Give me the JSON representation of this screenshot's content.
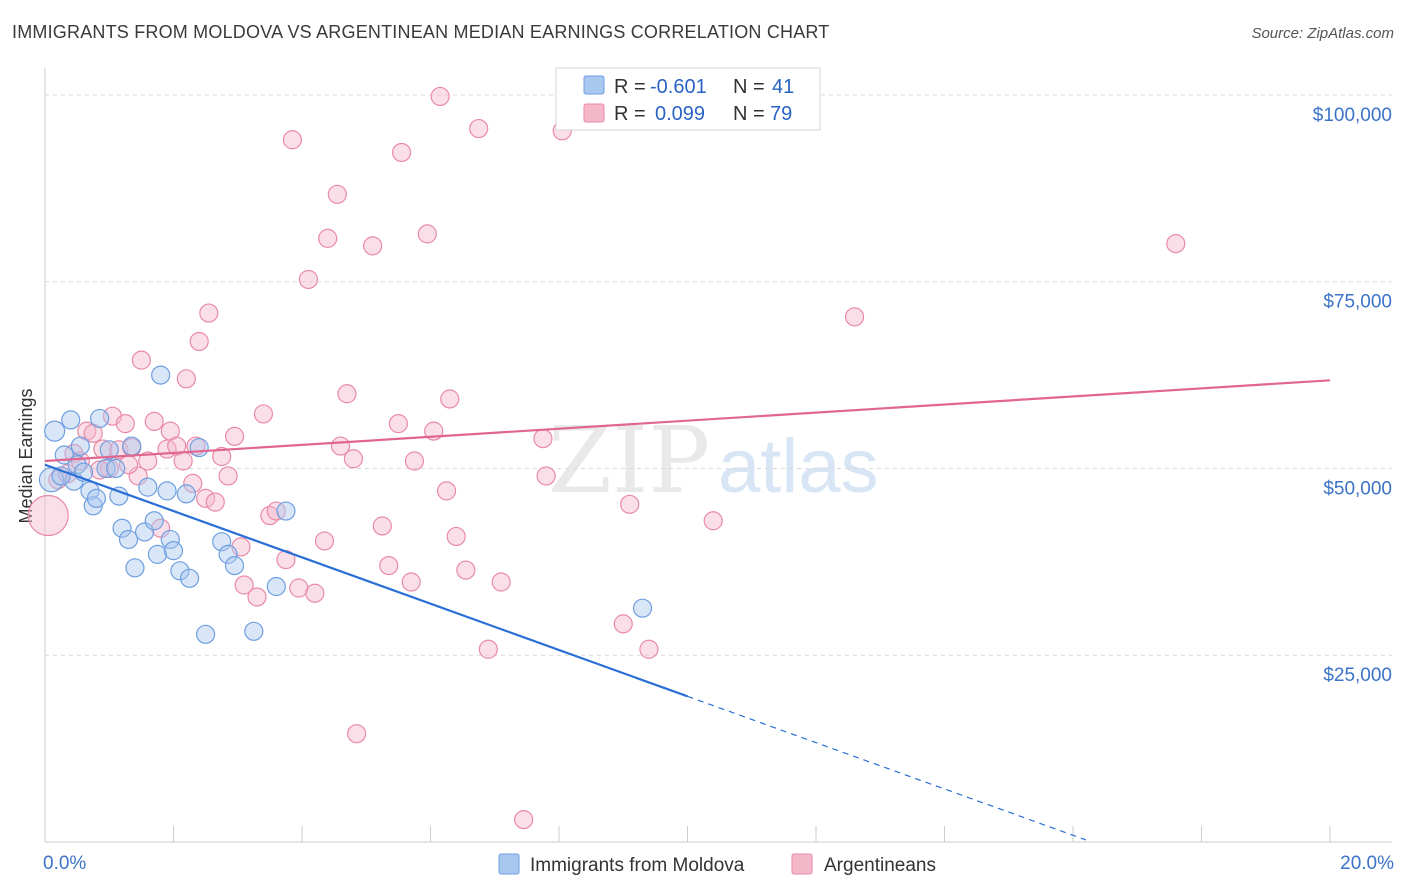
{
  "title": "IMMIGRANTS FROM MOLDOVA VS ARGENTINEAN MEDIAN EARNINGS CORRELATION CHART",
  "source": "Source: ZipAtlas.com",
  "watermark": {
    "zip": "ZIP",
    "atlas": "atlas"
  },
  "colors": {
    "blue_fill": "#a9c8f0",
    "blue_stroke": "#6f9fe0",
    "blue_line": "#2a6fd6",
    "pink_fill": "#f5b8cb",
    "pink_stroke": "#e98aa8",
    "pink_line": "#e06690",
    "tick_text": "#3b73c8",
    "grid": "#d9d9d9"
  },
  "legend": {
    "rows": [
      {
        "r_label": "R = ",
        "r_value": "-0.601",
        "n_label": "N = ",
        "n_value": "41",
        "color": "blue"
      },
      {
        "r_label": "R = ",
        "r_value": "0.099",
        "n_label": "N = ",
        "n_value": "79",
        "color": "pink"
      }
    ]
  },
  "bottom_legend": [
    {
      "label": "Immigrants from Moldova",
      "color": "blue"
    },
    {
      "label": "Argentineans",
      "color": "pink"
    }
  ],
  "chart_data": {
    "type": "scatter",
    "title": "IMMIGRANTS FROM MOLDOVA VS ARGENTINEAN MEDIAN EARNINGS CORRELATION CHART",
    "xlabel": "",
    "ylabel": "Median Earnings",
    "xlim": [
      0,
      20
    ],
    "ylim": [
      0,
      102000
    ],
    "x_tick_labels": [
      "0.0%",
      "20.0%"
    ],
    "y_ticks": [
      25000,
      50000,
      75000,
      100000
    ],
    "y_tick_labels": [
      "$25,000",
      "$50,000",
      "$75,000",
      "$100,000"
    ],
    "grid": true,
    "legend_position": "top-center",
    "series": [
      {
        "name": "Immigrants from Moldova",
        "color": "blue",
        "r": -0.601,
        "n": 41,
        "trend": {
          "x0": 0,
          "y0": 50500,
          "x1": 10,
          "y1": 19500,
          "dashed_to_x": 16.2
        },
        "points": [
          [
            0.1,
            48500,
            12
          ],
          [
            0.15,
            55000,
            10
          ],
          [
            0.3,
            51800,
            9
          ],
          [
            0.4,
            56500,
            9
          ],
          [
            0.45,
            48300,
            9
          ],
          [
            0.5,
            50500,
            9
          ],
          [
            0.6,
            49500,
            9
          ],
          [
            0.7,
            47000,
            9
          ],
          [
            0.75,
            45000,
            9
          ],
          [
            0.8,
            46000,
            9
          ],
          [
            0.85,
            56700,
            9
          ],
          [
            0.95,
            50000,
            9
          ],
          [
            1.0,
            52500,
            9
          ],
          [
            1.1,
            50000,
            9
          ],
          [
            1.15,
            46300,
            9
          ],
          [
            1.2,
            42000,
            9
          ],
          [
            1.3,
            40500,
            9
          ],
          [
            1.35,
            53000,
            9
          ],
          [
            1.4,
            36700,
            9
          ],
          [
            1.55,
            41500,
            9
          ],
          [
            1.6,
            47500,
            9
          ],
          [
            1.7,
            43000,
            9
          ],
          [
            1.75,
            38500,
            9
          ],
          [
            1.8,
            62500,
            9
          ],
          [
            1.9,
            47000,
            9
          ],
          [
            1.95,
            40500,
            9
          ],
          [
            2.0,
            39000,
            9
          ],
          [
            2.1,
            36300,
            9
          ],
          [
            2.25,
            35300,
            9
          ],
          [
            2.4,
            52800,
            9
          ],
          [
            2.5,
            27800,
            9
          ],
          [
            2.2,
            46600,
            9
          ],
          [
            2.75,
            40200,
            9
          ],
          [
            2.85,
            38500,
            9
          ],
          [
            2.95,
            37000,
            9
          ],
          [
            3.25,
            28200,
            9
          ],
          [
            3.6,
            34200,
            9
          ],
          [
            3.75,
            44300,
            9
          ],
          [
            9.3,
            31300,
            9
          ],
          [
            0.55,
            53000,
            9
          ],
          [
            0.25,
            49000,
            9
          ]
        ]
      },
      {
        "name": "Argentineans",
        "color": "pink",
        "r": 0.099,
        "n": 79,
        "trend": {
          "x0": 0,
          "y0": 51000,
          "x1": 20,
          "y1": 61800
        },
        "points": [
          [
            0.05,
            43700,
            20
          ],
          [
            0.2,
            48500,
            9
          ],
          [
            0.35,
            49300,
            9
          ],
          [
            0.45,
            52000,
            9
          ],
          [
            0.55,
            51000,
            9
          ],
          [
            0.65,
            55000,
            9
          ],
          [
            0.75,
            54700,
            9
          ],
          [
            0.9,
            52600,
            9
          ],
          [
            1.0,
            50000,
            9
          ],
          [
            1.05,
            57000,
            9
          ],
          [
            1.15,
            52500,
            9
          ],
          [
            1.25,
            56000,
            9
          ],
          [
            1.35,
            52800,
            9
          ],
          [
            1.45,
            49000,
            9
          ],
          [
            1.5,
            64500,
            9
          ],
          [
            1.6,
            51000,
            9
          ],
          [
            1.7,
            56300,
            9
          ],
          [
            1.8,
            42000,
            9
          ],
          [
            1.9,
            52600,
            9
          ],
          [
            1.95,
            55000,
            9
          ],
          [
            2.05,
            53000,
            9
          ],
          [
            2.15,
            51000,
            9
          ],
          [
            2.2,
            62000,
            9
          ],
          [
            2.35,
            53000,
            9
          ],
          [
            2.4,
            67000,
            9
          ],
          [
            2.5,
            46000,
            9
          ],
          [
            2.55,
            70800,
            9
          ],
          [
            2.65,
            45500,
            9
          ],
          [
            2.75,
            51600,
            9
          ],
          [
            2.85,
            49000,
            9
          ],
          [
            2.95,
            54300,
            9
          ],
          [
            3.1,
            34400,
            9
          ],
          [
            3.05,
            39500,
            9
          ],
          [
            3.3,
            32800,
            9
          ],
          [
            3.4,
            57300,
            9
          ],
          [
            3.5,
            43700,
            9
          ],
          [
            3.6,
            44300,
            9
          ],
          [
            3.75,
            37800,
            9
          ],
          [
            3.85,
            94000,
            9
          ],
          [
            3.95,
            34000,
            9
          ],
          [
            4.1,
            75300,
            9
          ],
          [
            4.2,
            33300,
            9
          ],
          [
            4.35,
            40300,
            9
          ],
          [
            4.4,
            80800,
            9
          ],
          [
            4.55,
            86700,
            9
          ],
          [
            4.6,
            53000,
            9
          ],
          [
            4.7,
            60000,
            9
          ],
          [
            4.8,
            51300,
            9
          ],
          [
            4.85,
            14500,
            9
          ],
          [
            5.1,
            79800,
            9
          ],
          [
            5.25,
            42300,
            9
          ],
          [
            5.35,
            37000,
            9
          ],
          [
            5.5,
            56000,
            9
          ],
          [
            5.55,
            92300,
            9
          ],
          [
            5.7,
            34800,
            9
          ],
          [
            5.75,
            51000,
            9
          ],
          [
            5.95,
            81400,
            9
          ],
          [
            6.05,
            55000,
            9
          ],
          [
            6.15,
            99800,
            9
          ],
          [
            6.25,
            47000,
            9
          ],
          [
            6.3,
            59300,
            9
          ],
          [
            6.4,
            40900,
            9
          ],
          [
            6.55,
            36400,
            9
          ],
          [
            6.75,
            95500,
            9
          ],
          [
            6.9,
            25800,
            9
          ],
          [
            7.1,
            34800,
            9
          ],
          [
            7.45,
            3000,
            9
          ],
          [
            7.75,
            54000,
            9
          ],
          [
            7.8,
            49000,
            9
          ],
          [
            8.05,
            95200,
            9
          ],
          [
            9.0,
            29200,
            9
          ],
          [
            9.1,
            45200,
            9
          ],
          [
            9.4,
            25800,
            9
          ],
          [
            10.4,
            43000,
            9
          ],
          [
            12.6,
            70300,
            9
          ],
          [
            17.6,
            80100,
            9
          ],
          [
            1.3,
            50500,
            9
          ],
          [
            0.85,
            49800,
            9
          ],
          [
            2.3,
            48000,
            9
          ]
        ]
      }
    ]
  }
}
